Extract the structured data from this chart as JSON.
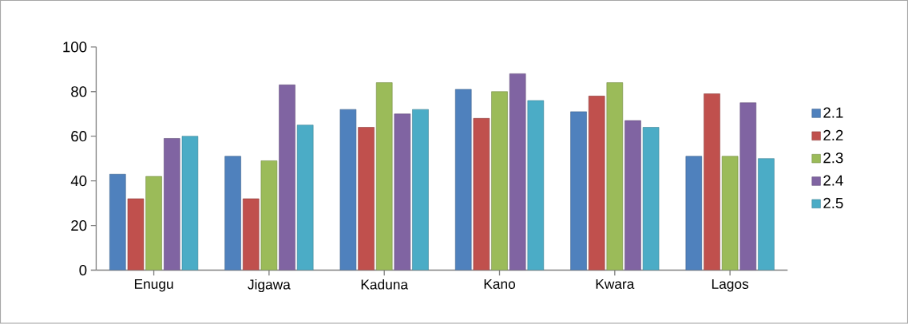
{
  "chart_data": {
    "type": "bar",
    "categories": [
      "Enugu",
      "Jigawa",
      "Kaduna",
      "Kano",
      "Kwara",
      "Lagos"
    ],
    "ylim": [
      0,
      100
    ],
    "yticks": [
      0,
      20,
      40,
      60,
      80,
      100
    ],
    "grid": false,
    "legend": "right",
    "series": [
      {
        "name": "2.1",
        "color": "#4f81bd",
        "values": [
          43,
          51,
          72,
          81,
          71,
          51
        ]
      },
      {
        "name": "2.2",
        "color": "#c0504d",
        "values": [
          32,
          32,
          64,
          68,
          78,
          79
        ]
      },
      {
        "name": "2.3",
        "color": "#9bbb59",
        "values": [
          42,
          49,
          84,
          80,
          84,
          51
        ]
      },
      {
        "name": "2.4",
        "color": "#8064a2",
        "values": [
          59,
          83,
          70,
          88,
          67,
          75
        ]
      },
      {
        "name": "2.5",
        "color": "#4bacc6",
        "values": [
          60,
          65,
          72,
          76,
          64,
          50
        ]
      }
    ]
  }
}
